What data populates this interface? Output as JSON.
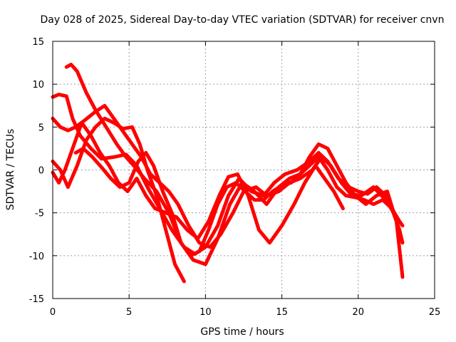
{
  "chart_data": {
    "type": "line",
    "title": "Day 028 of 2025, Sidereal Day-to-day VTEC variation (SDTVAR) for receiver cnvn",
    "xlabel": "GPS time / hours",
    "ylabel": "SDTVAR / TECUs",
    "xlim": [
      0,
      25
    ],
    "ylim": [
      -15,
      15
    ],
    "xticks": [
      0,
      5,
      10,
      15,
      20,
      25
    ],
    "yticks": [
      -15,
      -10,
      -5,
      0,
      5,
      10,
      15
    ],
    "grid": true,
    "color": "#ff0000",
    "series": [
      {
        "name": "s1",
        "x": [
          0,
          0.4,
          0.9,
          1.3,
          1.8,
          2.5,
          3.2,
          4.0,
          4.8,
          5.5,
          6.2,
          7.0,
          7.8,
          8.6,
          9.3,
          10.0,
          10.8,
          11.5,
          12.2,
          13.0,
          13.8,
          14.5,
          15.2,
          16.0,
          16.8,
          17.4,
          18.0,
          18.7,
          19.4,
          20.0,
          20.6,
          21.2,
          21.8,
          22.3,
          22.7,
          22.9
        ],
        "y": [
          8.5,
          8.8,
          8.6,
          6.0,
          4.0,
          2.5,
          1.3,
          1.5,
          1.8,
          0.5,
          -2.0,
          -4.5,
          -7.0,
          -9.0,
          -9.8,
          -9.0,
          -6.5,
          -3.0,
          -1.0,
          -2.5,
          -3.0,
          -1.5,
          -0.5,
          0.0,
          1.0,
          2.0,
          1.0,
          -1.0,
          -2.0,
          -2.5,
          -2.8,
          -2.0,
          -3.0,
          -5.0,
          -7.0,
          -8.5
        ]
      },
      {
        "name": "s2",
        "x": [
          0.9,
          1.2,
          1.6,
          2.2,
          2.8,
          3.5,
          4.2,
          4.8,
          5.4,
          6.0,
          6.8,
          7.6,
          8.4,
          9.2,
          10.0,
          10.8,
          11.6,
          12.4,
          13.2,
          14.0,
          14.8,
          15.5,
          16.2,
          16.8,
          17.4,
          18.0,
          18.6,
          19.2,
          19.8,
          20.5,
          21.2,
          21.9,
          22.5,
          22.9
        ],
        "y": [
          12.0,
          12.3,
          11.5,
          9.0,
          7.0,
          5.0,
          3.0,
          1.5,
          0.3,
          -1.0,
          -2.5,
          -5.0,
          -8.5,
          -10.5,
          -11.0,
          -8.0,
          -4.0,
          -1.5,
          -2.5,
          -4.0,
          -2.0,
          -1.0,
          -0.5,
          1.5,
          3.0,
          2.5,
          0.5,
          -1.5,
          -3.0,
          -4.0,
          -3.0,
          -2.5,
          -6.0,
          -12.5
        ]
      },
      {
        "name": "s3",
        "x": [
          0,
          0.5,
          1.0,
          1.5,
          2.1,
          2.8,
          3.4,
          4.0,
          4.6,
          5.2,
          5.8,
          6.4,
          7.0,
          7.6,
          8.2,
          8.9,
          9.6,
          10.3,
          11.0,
          11.8,
          12.5,
          13.3,
          14.0,
          14.8,
          15.5,
          16.2,
          17.0,
          17.6,
          18.2,
          18.9,
          19.5,
          20.2,
          21.0,
          21.8,
          22.5,
          22.9
        ],
        "y": [
          6.0,
          5.0,
          4.6,
          5.0,
          5.8,
          6.8,
          7.5,
          6.0,
          4.5,
          3.0,
          1.5,
          -0.5,
          -1.5,
          -2.5,
          -4.0,
          -6.5,
          -8.5,
          -9.0,
          -7.5,
          -5.0,
          -2.5,
          -2.0,
          -3.0,
          -2.5,
          -1.5,
          -1.0,
          0.0,
          1.5,
          0.5,
          -1.5,
          -2.8,
          -3.0,
          -2.0,
          -3.5,
          -5.5,
          -6.5
        ]
      },
      {
        "name": "s4",
        "x": [
          0,
          0.4,
          0.8,
          1.3,
          1.9,
          2.5,
          3.1,
          3.7,
          4.3,
          4.9,
          5.5,
          6.1,
          6.7,
          7.4,
          8.1,
          8.8,
          9.5,
          10.2,
          10.9,
          11.5,
          12.1,
          12.8,
          13.5,
          14.2,
          15.0,
          15.8,
          16.5,
          17.2,
          17.8,
          18.4,
          19.0
        ],
        "y": [
          -0.3,
          -1.5,
          0.0,
          2.5,
          5.5,
          4.0,
          2.0,
          0.5,
          -1.5,
          -2.5,
          -1.0,
          -3.0,
          -4.5,
          -5.0,
          -5.5,
          -7.0,
          -8.0,
          -6.0,
          -3.0,
          -0.8,
          -0.5,
          -3.0,
          -7.0,
          -8.5,
          -6.5,
          -4.0,
          -1.5,
          0.5,
          -1.0,
          -2.5,
          -4.5
        ]
      },
      {
        "name": "s5",
        "x": [
          0,
          0.5,
          1.0,
          1.6,
          2.2,
          2.8,
          3.4,
          4.0,
          4.6,
          5.2,
          5.7,
          6.2,
          6.8,
          7.4,
          8.0,
          8.6
        ],
        "y": [
          1.0,
          0.0,
          -2.0,
          0.5,
          3.5,
          5.0,
          6.0,
          5.5,
          4.8,
          5.0,
          3.0,
          0.0,
          -3.0,
          -7.0,
          -11.0,
          -13.0
        ]
      },
      {
        "name": "s6",
        "x": [
          1.5,
          2.0,
          2.6,
          3.2,
          3.8,
          4.4,
          5.0,
          5.6,
          6.1,
          6.6,
          7.2,
          7.8,
          8.4,
          9.0,
          9.6,
          10.2,
          10.8,
          11.4,
          12.0,
          12.6,
          13.2,
          13.8,
          14.4,
          15.0,
          15.6,
          16.2,
          16.8,
          17.4,
          18.0,
          18.6,
          19.2,
          19.8,
          20.4,
          21.0,
          21.6,
          22.2,
          22.7
        ],
        "y": [
          2.0,
          2.5,
          1.5,
          0.3,
          -1.0,
          -2.0,
          -1.5,
          1.0,
          2.0,
          0.5,
          -2.5,
          -5.0,
          -8.5,
          -10.0,
          -9.5,
          -7.0,
          -4.0,
          -2.0,
          -1.5,
          -2.5,
          -3.5,
          -3.5,
          -2.5,
          -1.8,
          -1.5,
          -0.5,
          0.5,
          1.5,
          0.0,
          -2.0,
          -3.0,
          -3.2,
          -3.5,
          -4.0,
          -3.5,
          -4.5,
          -6.0
        ]
      }
    ]
  }
}
